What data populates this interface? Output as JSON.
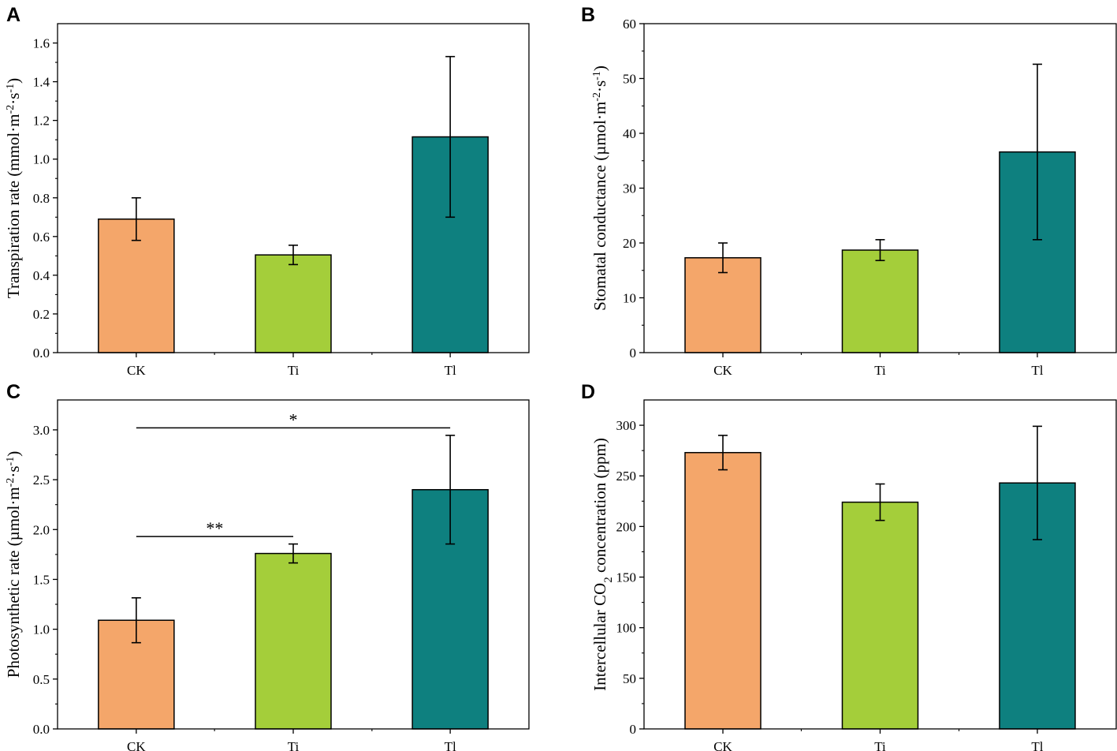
{
  "colors": {
    "CK": "#F4A66A",
    "Ti": "#A4CE3A",
    "Tl": "#0E807F",
    "axis": "#000000"
  },
  "chart_data": [
    {
      "id": "A",
      "panel_label": "A",
      "type": "bar",
      "categories": [
        "CK",
        "Ti",
        "Tl"
      ],
      "values": [
        0.69,
        0.505,
        1.115
      ],
      "errors": [
        0.11,
        0.05,
        0.415
      ],
      "ylim": [
        0,
        1.7
      ],
      "yticks": [
        0.0,
        0.2,
        0.4,
        0.6,
        0.8,
        1.0,
        1.2,
        1.4,
        1.6
      ],
      "ytick_labels": [
        "0.0",
        "0.2",
        "0.4",
        "0.6",
        "0.8",
        "1.0",
        "1.2",
        "1.4",
        "1.6"
      ],
      "ylabel": {
        "main": "Transpiration rate (mmol·m",
        "sup1": "-2",
        "mid": "·s",
        "sup2": "-1",
        "end": ")"
      },
      "xlabel": "",
      "significance": []
    },
    {
      "id": "B",
      "panel_label": "B",
      "type": "bar",
      "categories": [
        "CK",
        "Ti",
        "Tl"
      ],
      "values": [
        17.3,
        18.7,
        36.6
      ],
      "errors": [
        2.7,
        1.9,
        16.0
      ],
      "ylim": [
        0,
        60
      ],
      "yticks": [
        0,
        10,
        20,
        30,
        40,
        50,
        60
      ],
      "ytick_labels": [
        "0",
        "10",
        "20",
        "30",
        "40",
        "50",
        "60"
      ],
      "ylabel": {
        "main": "Stomatal conductance (µmol·m",
        "sup1": "-2",
        "mid": "·s",
        "sup2": "-1",
        "end": ")"
      },
      "xlabel": "",
      "significance": []
    },
    {
      "id": "C",
      "panel_label": "C",
      "type": "bar",
      "categories": [
        "CK",
        "Ti",
        "Tl"
      ],
      "values": [
        1.09,
        1.76,
        2.4
      ],
      "errors": [
        0.225,
        0.095,
        0.545
      ],
      "ylim": [
        0,
        3.3
      ],
      "yticks": [
        0.0,
        0.5,
        1.0,
        1.5,
        2.0,
        2.5,
        3.0
      ],
      "ytick_labels": [
        "0.0",
        "0.5",
        "1.0",
        "1.5",
        "2.0",
        "2.5",
        "3.0"
      ],
      "ylabel": {
        "main": "Photosynthetic rate (µmol·m",
        "sup1": "-2",
        "mid": "·s",
        "sup2": "-1",
        "end": ")"
      },
      "xlabel": "",
      "significance": [
        {
          "from": 0,
          "to": 2,
          "y": 3.02,
          "label": "*"
        },
        {
          "from": 0,
          "to": 1,
          "y": 1.93,
          "label": "**"
        }
      ]
    },
    {
      "id": "D",
      "panel_label": "D",
      "type": "bar",
      "categories": [
        "CK",
        "Ti",
        "Tl"
      ],
      "values": [
        273,
        224,
        243
      ],
      "errors": [
        17,
        18,
        56
      ],
      "ylim": [
        0,
        325
      ],
      "yticks": [
        0,
        50,
        100,
        150,
        200,
        250,
        300
      ],
      "ytick_labels": [
        "0",
        "50",
        "100",
        "150",
        "200",
        "250",
        "300"
      ],
      "ylabel": {
        "main": "Intercellular CO",
        "sub": "2",
        "end": " concentration (ppm)"
      },
      "xlabel": "",
      "significance": []
    }
  ]
}
